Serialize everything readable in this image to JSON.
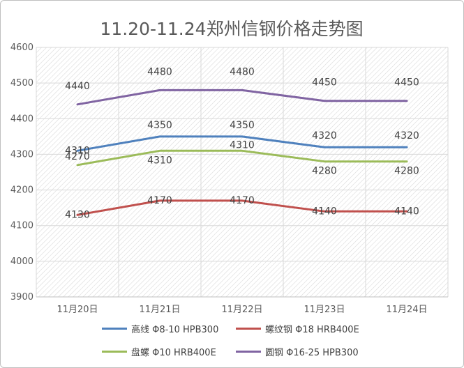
{
  "chart_data": {
    "type": "line",
    "title": "11.20-11.24郑州信钢价格走势图",
    "categories": [
      "11月20日",
      "11月21日",
      "11月22日",
      "11月23日",
      "11月24日"
    ],
    "ylim": [
      3900,
      4600
    ],
    "yticks": [
      "3900",
      "4000",
      "4100",
      "4200",
      "4300",
      "4400",
      "4500",
      "4600"
    ],
    "grid": true,
    "background_pattern": "diagonal-hatch",
    "legend_position": "bottom",
    "series": [
      {
        "name": "高线 Φ8-10 HPB300",
        "color": "#4f81bd",
        "values": [
          4310,
          4350,
          4350,
          4320,
          4320
        ],
        "labels": [
          "4310",
          "4350",
          "4350",
          "4320",
          "4320"
        ]
      },
      {
        "name": "螺纹钢 Φ18 HRB400E",
        "color": "#c0504d",
        "values": [
          4130,
          4170,
          4170,
          4140,
          4140
        ],
        "labels": [
          "4130",
          "4170",
          "4170",
          "4140",
          "4140"
        ]
      },
      {
        "name": "盘螺 Φ10 HRB400E",
        "color": "#9bbb59",
        "values": [
          4270,
          4310,
          4310,
          4280,
          4280
        ],
        "labels": [
          "4270",
          "4310",
          "4310",
          "4280",
          "4280"
        ]
      },
      {
        "name": "圆钢 Φ16-25 HPB300",
        "color": "#8064a2",
        "values": [
          4440,
          4480,
          4480,
          4450,
          4450
        ],
        "labels": [
          "4440",
          "4480",
          "4480",
          "4450",
          "4450"
        ]
      }
    ]
  }
}
